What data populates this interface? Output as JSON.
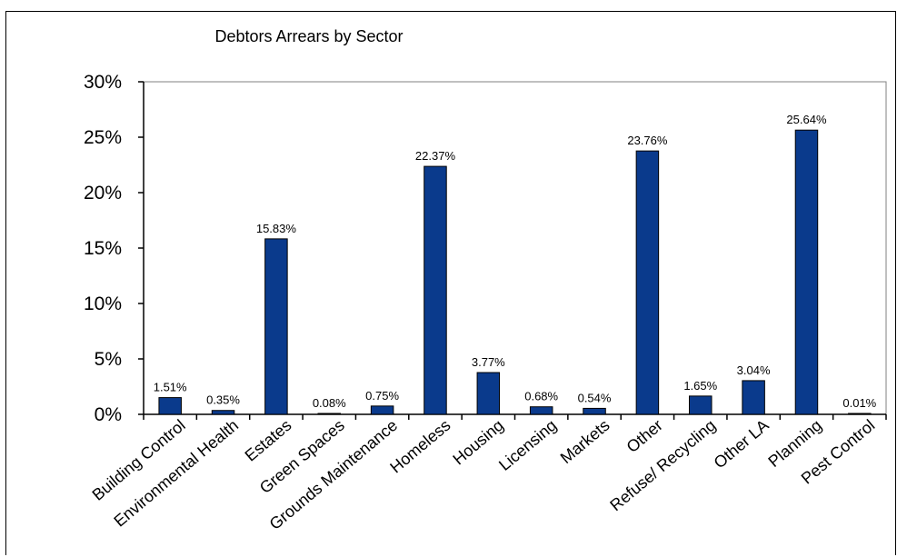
{
  "chart_data": {
    "type": "bar",
    "title": "Debtors Arrears by Sector",
    "xlabel": "",
    "ylabel": "",
    "ylim": [
      0,
      30
    ],
    "yticks": [
      "0%",
      "5%",
      "10%",
      "15%",
      "20%",
      "25%",
      "30%"
    ],
    "grid": false,
    "legend": "none",
    "categories": [
      "Building Control",
      "Environmental Health",
      "Estates",
      "Green Spaces",
      "Grounds Maintenance",
      "Homeless",
      "Housing",
      "Licensing",
      "Markets",
      "Other",
      "Refuse/ Recycling",
      "Other LA",
      "Planning",
      "Pest Control"
    ],
    "values": [
      1.51,
      0.35,
      15.83,
      0.08,
      0.75,
      22.37,
      3.77,
      0.68,
      0.54,
      23.76,
      1.65,
      3.04,
      25.64,
      0.01
    ],
    "data_labels": [
      "1.51%",
      "0.35%",
      "15.83%",
      "0.08%",
      "0.75%",
      "22.37%",
      "3.77%",
      "0.68%",
      "0.54%",
      "23.76%",
      "1.65%",
      "3.04%",
      "25.64%",
      "0.01%"
    ],
    "bar_color": "#0a3a8c"
  }
}
